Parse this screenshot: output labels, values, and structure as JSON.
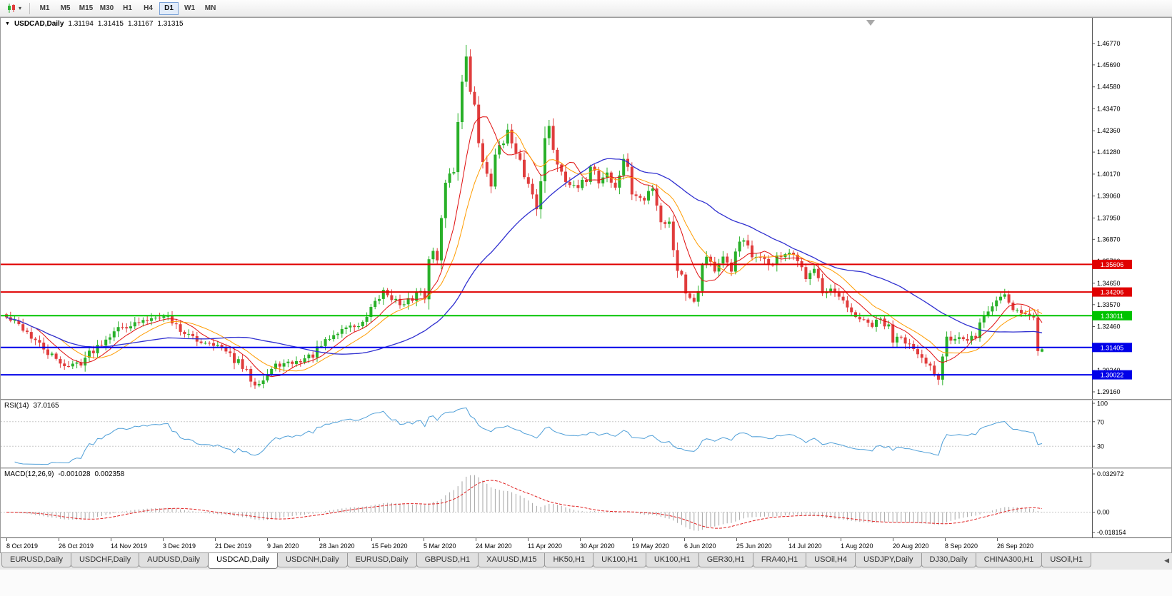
{
  "toolbar": {
    "timeframes": [
      "M1",
      "M5",
      "M15",
      "M30",
      "H1",
      "H4",
      "D1",
      "W1",
      "MN"
    ],
    "active_timeframe": "D1",
    "chart_menu_caret": "▾"
  },
  "chart": {
    "symbol_label": "USDCAD,Daily",
    "collapse_glyph": "▼",
    "ohlc": {
      "open": "1.31194",
      "high": "1.31415",
      "low": "1.31167",
      "close": "1.31315"
    }
  },
  "price_axis": {
    "ticks": [
      {
        "label": "1.46770",
        "value": 1.4677
      },
      {
        "label": "1.45690",
        "value": 1.4569
      },
      {
        "label": "1.44580",
        "value": 1.4458
      },
      {
        "label": "1.43470",
        "value": 1.4347
      },
      {
        "label": "1.42360",
        "value": 1.4236
      },
      {
        "label": "1.41280",
        "value": 1.4128
      },
      {
        "label": "1.40170",
        "value": 1.4017
      },
      {
        "label": "1.39060",
        "value": 1.3906
      },
      {
        "label": "1.37950",
        "value": 1.3795
      },
      {
        "label": "1.36870",
        "value": 1.3687
      },
      {
        "label": "1.35760",
        "value": 1.3576
      },
      {
        "label": "1.34650",
        "value": 1.3465
      },
      {
        "label": "1.33570",
        "value": 1.3357
      },
      {
        "label": "1.32460",
        "value": 1.3246
      },
      {
        "label": "1.31350",
        "value": 1.3135
      },
      {
        "label": "1.30240",
        "value": 1.3024
      },
      {
        "label": "1.29160",
        "value": 1.2916
      }
    ]
  },
  "levels": [
    {
      "label": "1.35606",
      "value": 1.35606,
      "color": "#e00000"
    },
    {
      "label": "1.34206",
      "value": 1.34206,
      "color": "#e00000"
    },
    {
      "label": "1.33011",
      "value": 1.33011,
      "color": "#00c300"
    },
    {
      "label": "1.31405",
      "value": 1.31405,
      "color": "#0000e8"
    },
    {
      "label": "1.30022",
      "value": 1.30022,
      "color": "#0000e8"
    }
  ],
  "rsi_panel": {
    "name": "RSI(14)",
    "value": "37.0165",
    "line_color": "#4f9fd8",
    "level_lines": [
      70,
      30
    ],
    "axis_labels": [
      {
        "label": "100",
        "value": 100
      },
      {
        "label": "70",
        "value": 70
      },
      {
        "label": "30",
        "value": 30
      }
    ]
  },
  "macd_panel": {
    "name": "MACD(12,26,9)",
    "main_value": "-0.001028",
    "signal_value": "0.002358",
    "axis_top": "0.032972",
    "axis_zero": "0.00",
    "axis_bottom": "-0.018154",
    "hist_color": "#a6a6a6",
    "signal_color": "#e02020"
  },
  "timeline": {
    "dates": [
      "8 Oct 2019",
      "26 Oct 2019",
      "14 Nov 2019",
      "3 Dec 2019",
      "21 Dec 2019",
      "9 Jan 2020",
      "28 Jan 2020",
      "15 Feb 2020",
      "5 Mar 2020",
      "24 Mar 2020",
      "11 Apr 2020",
      "30 Apr 2020",
      "19 May 2020",
      "6 Jun 2020",
      "25 Jun 2020",
      "14 Jul 2020",
      "1 Aug 2020",
      "20 Aug 2020",
      "8 Sep 2020",
      "26 Sep 2020"
    ]
  },
  "tabs": {
    "active_index": 3,
    "scroll_left_glyph": "◀",
    "items": [
      "EURUSD,Daily",
      "USDCHF,Daily",
      "AUDUSD,Daily",
      "USDCAD,Daily",
      "USDCNH,Daily",
      "EURUSD,Daily",
      "GBPUSD,H1",
      "XAUUSD,M15",
      "HK50,H1",
      "UK100,H1",
      "UK100,H1",
      "GER30,H1",
      "FRA40,H1",
      "USOil,H4",
      "USDJPY,Daily",
      "DJ30,Daily",
      "CHINA300,H1",
      "USOil,H1"
    ]
  },
  "chart_data": {
    "type": "candlestick",
    "title": "USDCAD,Daily",
    "symbol": "USDCAD",
    "timeframe": "Daily",
    "bar_count": 251,
    "y_range_shown": [
      1.2876,
      1.4807
    ],
    "last_candle": {
      "open": 1.31194,
      "high": 1.31415,
      "low": 1.31167,
      "close": 1.31315
    },
    "peak_high": 1.467,
    "candle_up_color": "#29b029",
    "candle_down_color": "#e03c3c",
    "moving_averages": [
      {
        "period": 8,
        "color": "#e01010"
      },
      {
        "period": 14,
        "color": "#ff9c00"
      },
      {
        "period": 40,
        "color": "#3030d0"
      }
    ],
    "price_path": [
      [
        0,
        1.329
      ],
      [
        4,
        1.324
      ],
      [
        8,
        1.315
      ],
      [
        12,
        1.3075
      ],
      [
        15,
        1.3045
      ],
      [
        18,
        1.307
      ],
      [
        22,
        1.315
      ],
      [
        26,
        1.323
      ],
      [
        30,
        1.3255
      ],
      [
        33,
        1.327
      ],
      [
        36,
        1.33
      ],
      [
        39,
        1.3295
      ],
      [
        42,
        1.323
      ],
      [
        46,
        1.317
      ],
      [
        50,
        1.3165
      ],
      [
        52,
        1.313
      ],
      [
        56,
        1.306
      ],
      [
        60,
        1.296
      ],
      [
        62,
        1.298
      ],
      [
        65,
        1.305
      ],
      [
        70,
        1.3065
      ],
      [
        74,
        1.3105
      ],
      [
        78,
        1.3185
      ],
      [
        82,
        1.3245
      ],
      [
        86,
        1.325
      ],
      [
        89,
        1.335
      ],
      [
        91,
        1.343
      ],
      [
        93,
        1.3395
      ],
      [
        96,
        1.3345
      ],
      [
        99,
        1.342
      ],
      [
        101,
        1.342
      ],
      [
        103,
        1.366
      ],
      [
        104,
        1.356
      ],
      [
        106,
        1.399
      ],
      [
        108,
        1.406
      ],
      [
        109,
        1.4265
      ],
      [
        110,
        1.45
      ],
      [
        111,
        1.464
      ],
      [
        112,
        1.442
      ],
      [
        113,
        1.433
      ],
      [
        114,
        1.419
      ],
      [
        115,
        1.406
      ],
      [
        117,
        1.399
      ],
      [
        119,
        1.417
      ],
      [
        121,
        1.422
      ],
      [
        123,
        1.41
      ],
      [
        125,
        1.403
      ],
      [
        126,
        1.396
      ],
      [
        128,
        1.387
      ],
      [
        130,
        1.418
      ],
      [
        131,
        1.424
      ],
      [
        133,
        1.408
      ],
      [
        135,
        1.4
      ],
      [
        137,
        1.395
      ],
      [
        139,
        1.394
      ],
      [
        141,
        1.408
      ],
      [
        143,
        1.398
      ],
      [
        145,
        1.403
      ],
      [
        147,
        1.393
      ],
      [
        149,
        1.411
      ],
      [
        151,
        1.392
      ],
      [
        154,
        1.388
      ],
      [
        156,
        1.397
      ],
      [
        158,
        1.378
      ],
      [
        160,
        1.376
      ],
      [
        162,
        1.356
      ],
      [
        164,
        1.342
      ],
      [
        166,
        1.339
      ],
      [
        168,
        1.355
      ],
      [
        169,
        1.362
      ],
      [
        171,
        1.353
      ],
      [
        173,
        1.358
      ],
      [
        175,
        1.353
      ],
      [
        176,
        1.364
      ],
      [
        178,
        1.368
      ],
      [
        180,
        1.358
      ],
      [
        182,
        1.362
      ],
      [
        184,
        1.354
      ],
      [
        186,
        1.361
      ],
      [
        188,
        1.358
      ],
      [
        189,
        1.362
      ],
      [
        191,
        1.356
      ],
      [
        193,
        1.351
      ],
      [
        195,
        1.357
      ],
      [
        197,
        1.341
      ],
      [
        199,
        1.342
      ],
      [
        201,
        1.339
      ],
      [
        203,
        1.333
      ],
      [
        205,
        1.33
      ],
      [
        207,
        1.327
      ],
      [
        209,
        1.325
      ],
      [
        211,
        1.328
      ],
      [
        213,
        1.323
      ],
      [
        214,
        1.318
      ],
      [
        216,
        1.322
      ],
      [
        218,
        1.315
      ],
      [
        220,
        1.309
      ],
      [
        222,
        1.306
      ],
      [
        224,
        1.302
      ],
      [
        225,
        1.3
      ],
      [
        226,
        1.313
      ],
      [
        227,
        1.323
      ],
      [
        228,
        1.318
      ],
      [
        230,
        1.319
      ],
      [
        232,
        1.316
      ],
      [
        234,
        1.321
      ],
      [
        236,
        1.33
      ],
      [
        238,
        1.335
      ],
      [
        239,
        1.338
      ],
      [
        241,
        1.342
      ],
      [
        243,
        1.334
      ],
      [
        245,
        1.332
      ],
      [
        247,
        1.33
      ],
      [
        248,
        1.329
      ],
      [
        249,
        1.3125
      ],
      [
        250,
        1.31315
      ]
    ],
    "horizontal_levels": [
      1.35606,
      1.34206,
      1.33011,
      1.31405,
      1.30022
    ],
    "indicators": [
      {
        "name": "RSI",
        "params": [
          14
        ],
        "current": 37.0165,
        "axis": [
          100,
          70,
          30
        ]
      },
      {
        "name": "MACD",
        "params": [
          12,
          26,
          9
        ],
        "current_main": -0.001028,
        "current_signal": 0.002358,
        "axis": [
          0.032972,
          0.0,
          -0.018154
        ]
      }
    ],
    "x_labels": [
      "8 Oct 2019",
      "26 Oct 2019",
      "14 Nov 2019",
      "3 Dec 2019",
      "21 Dec 2019",
      "9 Jan 2020",
      "28 Jan 2020",
      "15 Feb 2020",
      "5 Mar 2020",
      "24 Mar 2020",
      "11 Apr 2020",
      "30 Apr 2020",
      "19 May 2020",
      "6 Jun 2020",
      "25 Jun 2020",
      "14 Jul 2020",
      "1 Aug 2020",
      "20 Aug 2020",
      "8 Sep 2020",
      "26 Sep 2020"
    ]
  }
}
